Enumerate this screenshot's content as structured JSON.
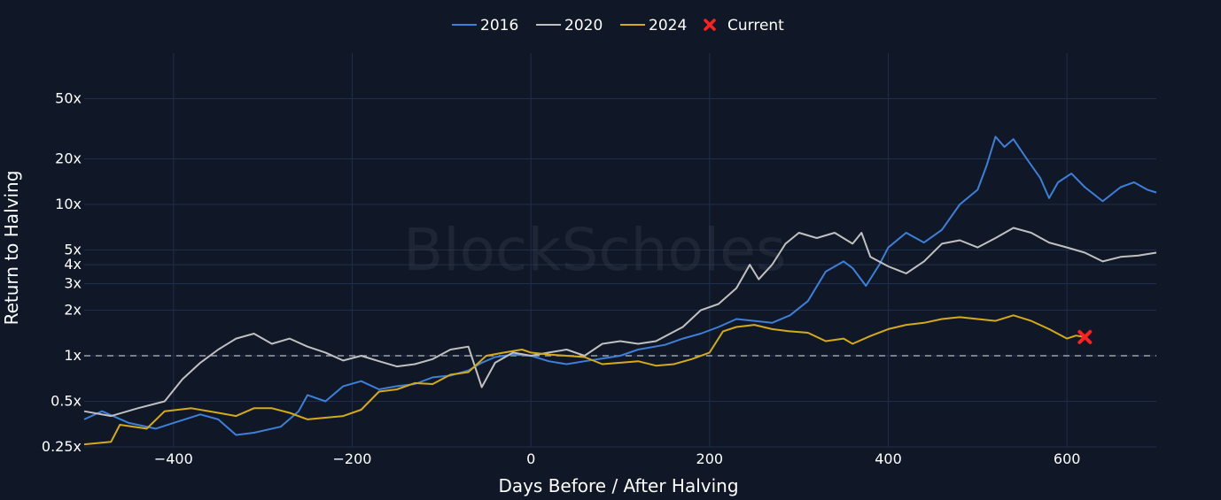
{
  "watermark": "BlockScholes",
  "chart_data": {
    "type": "line",
    "title": "",
    "xlabel": "Days Before / After Halving",
    "ylabel": "Return to Halving",
    "xlim": [
      -500,
      700
    ],
    "ylim": [
      0.25,
      100
    ],
    "y_scale": "log",
    "grid": true,
    "legend_position": "top-center",
    "x_ticks": [
      -400,
      -200,
      0,
      200,
      400,
      600
    ],
    "x_tick_labels": [
      "−400",
      "−200",
      "0",
      "200",
      "400",
      "600"
    ],
    "y_ticks": [
      0.25,
      0.5,
      1,
      2,
      3,
      4,
      5,
      10,
      20,
      50
    ],
    "y_tick_labels": [
      "0.25x",
      "0.5x",
      "1x",
      "2x",
      "3x",
      "4x",
      "5x",
      "10x",
      "20x",
      "50x"
    ],
    "reference_line": {
      "y": 1,
      "style": "dashed"
    },
    "series": [
      {
        "name": "2016",
        "color": "#3d7fd9",
        "points": [
          [
            -500,
            0.38
          ],
          [
            -480,
            0.43
          ],
          [
            -450,
            0.36
          ],
          [
            -420,
            0.33
          ],
          [
            -400,
            0.36
          ],
          [
            -370,
            0.41
          ],
          [
            -350,
            0.38
          ],
          [
            -330,
            0.3
          ],
          [
            -310,
            0.31
          ],
          [
            -280,
            0.34
          ],
          [
            -260,
            0.43
          ],
          [
            -250,
            0.55
          ],
          [
            -230,
            0.5
          ],
          [
            -210,
            0.63
          ],
          [
            -190,
            0.68
          ],
          [
            -170,
            0.6
          ],
          [
            -150,
            0.63
          ],
          [
            -130,
            0.65
          ],
          [
            -110,
            0.72
          ],
          [
            -90,
            0.74
          ],
          [
            -70,
            0.8
          ],
          [
            -55,
            0.9
          ],
          [
            -40,
            0.98
          ],
          [
            -20,
            1.02
          ],
          [
            0,
            1.0
          ],
          [
            20,
            0.92
          ],
          [
            40,
            0.88
          ],
          [
            60,
            0.92
          ],
          [
            80,
            0.96
          ],
          [
            100,
            1.0
          ],
          [
            120,
            1.1
          ],
          [
            150,
            1.18
          ],
          [
            170,
            1.3
          ],
          [
            190,
            1.4
          ],
          [
            210,
            1.55
          ],
          [
            230,
            1.75
          ],
          [
            250,
            1.7
          ],
          [
            270,
            1.65
          ],
          [
            290,
            1.85
          ],
          [
            310,
            2.3
          ],
          [
            330,
            3.6
          ],
          [
            350,
            4.2
          ],
          [
            360,
            3.8
          ],
          [
            375,
            2.9
          ],
          [
            390,
            4.0
          ],
          [
            400,
            5.2
          ],
          [
            420,
            6.5
          ],
          [
            440,
            5.6
          ],
          [
            460,
            6.8
          ],
          [
            480,
            10.0
          ],
          [
            500,
            12.5
          ],
          [
            510,
            18.0
          ],
          [
            520,
            28.0
          ],
          [
            530,
            24.0
          ],
          [
            540,
            27.0
          ],
          [
            555,
            20.0
          ],
          [
            570,
            15.0
          ],
          [
            580,
            11.0
          ],
          [
            590,
            14.0
          ],
          [
            605,
            16.0
          ],
          [
            620,
            13.0
          ],
          [
            640,
            10.5
          ],
          [
            660,
            13.0
          ],
          [
            675,
            14.0
          ],
          [
            690,
            12.5
          ],
          [
            700,
            12.0
          ]
        ]
      },
      {
        "name": "2020",
        "color": "#c0c0c0",
        "points": [
          [
            -500,
            0.43
          ],
          [
            -470,
            0.4
          ],
          [
            -440,
            0.45
          ],
          [
            -410,
            0.5
          ],
          [
            -390,
            0.7
          ],
          [
            -370,
            0.9
          ],
          [
            -350,
            1.1
          ],
          [
            -330,
            1.3
          ],
          [
            -310,
            1.4
          ],
          [
            -290,
            1.2
          ],
          [
            -270,
            1.3
          ],
          [
            -250,
            1.15
          ],
          [
            -230,
            1.05
          ],
          [
            -210,
            0.93
          ],
          [
            -190,
            1.0
          ],
          [
            -170,
            0.92
          ],
          [
            -150,
            0.85
          ],
          [
            -130,
            0.88
          ],
          [
            -110,
            0.95
          ],
          [
            -90,
            1.1
          ],
          [
            -70,
            1.15
          ],
          [
            -55,
            0.62
          ],
          [
            -40,
            0.9
          ],
          [
            -20,
            1.05
          ],
          [
            0,
            1.0
          ],
          [
            20,
            1.05
          ],
          [
            40,
            1.1
          ],
          [
            60,
            1.0
          ],
          [
            80,
            1.2
          ],
          [
            100,
            1.25
          ],
          [
            120,
            1.2
          ],
          [
            140,
            1.25
          ],
          [
            170,
            1.55
          ],
          [
            190,
            2.0
          ],
          [
            210,
            2.2
          ],
          [
            230,
            2.8
          ],
          [
            245,
            4.0
          ],
          [
            255,
            3.2
          ],
          [
            270,
            4.0
          ],
          [
            285,
            5.5
          ],
          [
            300,
            6.5
          ],
          [
            320,
            6.0
          ],
          [
            340,
            6.5
          ],
          [
            360,
            5.5
          ],
          [
            370,
            6.5
          ],
          [
            380,
            4.5
          ],
          [
            400,
            3.9
          ],
          [
            420,
            3.5
          ],
          [
            440,
            4.2
          ],
          [
            460,
            5.5
          ],
          [
            480,
            5.8
          ],
          [
            500,
            5.2
          ],
          [
            520,
            6.0
          ],
          [
            540,
            7.0
          ],
          [
            560,
            6.5
          ],
          [
            580,
            5.6
          ],
          [
            600,
            5.2
          ],
          [
            620,
            4.8
          ],
          [
            640,
            4.2
          ],
          [
            660,
            4.5
          ],
          [
            680,
            4.6
          ],
          [
            700,
            4.8
          ]
        ]
      },
      {
        "name": "2024",
        "color": "#d4aa1a",
        "points": [
          [
            -500,
            0.26
          ],
          [
            -470,
            0.27
          ],
          [
            -460,
            0.35
          ],
          [
            -430,
            0.33
          ],
          [
            -410,
            0.43
          ],
          [
            -380,
            0.45
          ],
          [
            -350,
            0.42
          ],
          [
            -330,
            0.4
          ],
          [
            -310,
            0.45
          ],
          [
            -290,
            0.45
          ],
          [
            -270,
            0.42
          ],
          [
            -250,
            0.38
          ],
          [
            -230,
            0.39
          ],
          [
            -210,
            0.4
          ],
          [
            -190,
            0.44
          ],
          [
            -170,
            0.58
          ],
          [
            -150,
            0.6
          ],
          [
            -130,
            0.66
          ],
          [
            -110,
            0.65
          ],
          [
            -90,
            0.75
          ],
          [
            -70,
            0.78
          ],
          [
            -50,
            1.0
          ],
          [
            -30,
            1.05
          ],
          [
            -10,
            1.1
          ],
          [
            0,
            1.05
          ],
          [
            20,
            1.02
          ],
          [
            40,
            1.0
          ],
          [
            60,
            0.98
          ],
          [
            80,
            0.88
          ],
          [
            100,
            0.9
          ],
          [
            120,
            0.92
          ],
          [
            140,
            0.86
          ],
          [
            160,
            0.88
          ],
          [
            180,
            0.95
          ],
          [
            200,
            1.05
          ],
          [
            215,
            1.45
          ],
          [
            230,
            1.55
          ],
          [
            250,
            1.6
          ],
          [
            270,
            1.5
          ],
          [
            290,
            1.45
          ],
          [
            310,
            1.42
          ],
          [
            330,
            1.25
          ],
          [
            350,
            1.3
          ],
          [
            360,
            1.2
          ],
          [
            380,
            1.35
          ],
          [
            400,
            1.5
          ],
          [
            420,
            1.6
          ],
          [
            440,
            1.65
          ],
          [
            460,
            1.75
          ],
          [
            480,
            1.8
          ],
          [
            500,
            1.75
          ],
          [
            520,
            1.7
          ],
          [
            540,
            1.85
          ],
          [
            560,
            1.7
          ],
          [
            580,
            1.5
          ],
          [
            600,
            1.3
          ],
          [
            610,
            1.36
          ],
          [
            620,
            1.33
          ]
        ]
      }
    ],
    "current_marker": {
      "name": "Current",
      "x": 620,
      "y": 1.33,
      "color": "#ff2020"
    }
  }
}
